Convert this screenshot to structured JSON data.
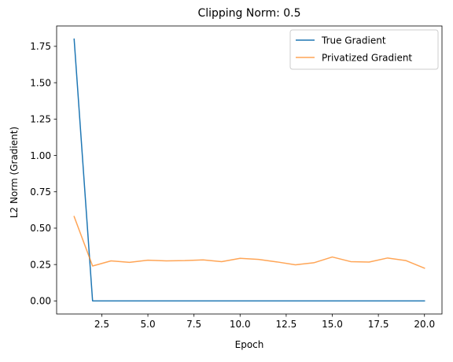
{
  "chart_data": {
    "type": "line",
    "title": "Clipping Norm: 0.5",
    "xlabel": "Epoch",
    "ylabel": "L2 Norm (Gradient)",
    "xlim": [
      0.05,
      20.95
    ],
    "ylim": [
      -0.09,
      1.89
    ],
    "xticks": [
      2.5,
      5.0,
      7.5,
      10.0,
      12.5,
      15.0,
      17.5,
      20.0
    ],
    "xtick_labels": [
      "2.5",
      "5.0",
      "7.5",
      "10.0",
      "12.5",
      "15.0",
      "17.5",
      "20.0"
    ],
    "yticks": [
      0.0,
      0.25,
      0.5,
      0.75,
      1.0,
      1.25,
      1.5,
      1.75
    ],
    "ytick_labels": [
      "0.00",
      "0.25",
      "0.50",
      "0.75",
      "1.00",
      "1.25",
      "1.50",
      "1.75"
    ],
    "grid": false,
    "legend_position": "top-right",
    "x": [
      1,
      2,
      3,
      4,
      5,
      6,
      7,
      8,
      9,
      10,
      11,
      12,
      13,
      14,
      15,
      16,
      17,
      18,
      19,
      20
    ],
    "series": [
      {
        "name": "True Gradient",
        "color": "#1f77b4",
        "values": [
          1.8,
          0.0,
          0.0,
          0.0,
          0.0,
          0.0,
          0.0,
          0.0,
          0.0,
          0.0,
          0.0,
          0.0,
          0.0,
          0.0,
          0.0,
          0.0,
          0.0,
          0.0,
          0.0,
          0.0
        ]
      },
      {
        "name": "Privatized Gradient",
        "color": "#ff7f0e",
        "opacity": 0.7,
        "values": [
          0.58,
          0.24,
          0.275,
          0.265,
          0.28,
          0.275,
          0.277,
          0.282,
          0.27,
          0.293,
          0.285,
          0.268,
          0.248,
          0.262,
          0.302,
          0.27,
          0.267,
          0.295,
          0.277,
          0.225
        ]
      }
    ]
  }
}
